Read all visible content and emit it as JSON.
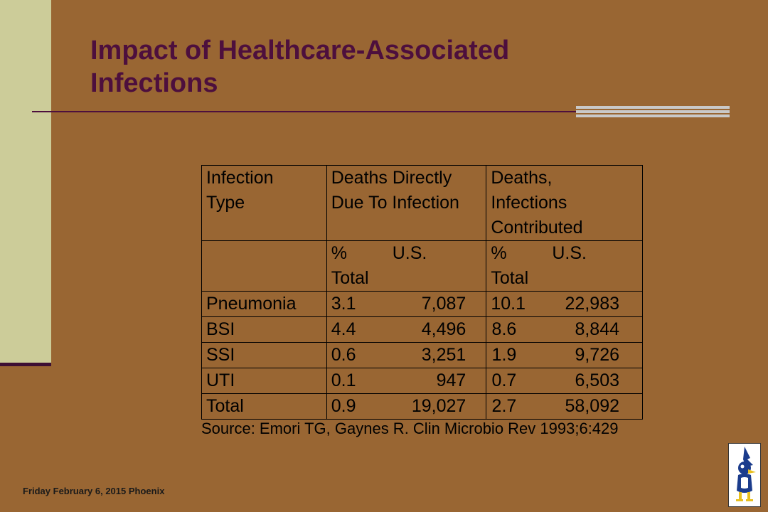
{
  "slide": {
    "title_line1": "Impact of Healthcare-Associated",
    "title_line2": "Infections",
    "footer": "Friday February 6, 2015 Phoenix",
    "source": "Source:  Emori TG, Gaynes R.  Clin Microbio Rev 1993;6:429",
    "colors": {
      "background": "#996633",
      "sidebar": "#cccc99",
      "title": "#4d0f3d"
    },
    "logo_icon": "bird-mascot-icon"
  },
  "table": {
    "header": {
      "col1": [
        "Infection",
        "Type"
      ],
      "col2": [
        "Deaths Directly",
        "Due To Infection"
      ],
      "col3": [
        "Deaths,",
        "Infections",
        "Contributed"
      ]
    },
    "subheader": {
      "pct": "%",
      "us": "U.S.",
      "total": "Total"
    },
    "rows": [
      {
        "type": "Pneumonia",
        "direct_pct": "3.1",
        "direct_us": "7,087",
        "contrib_pct": "10.1",
        "contrib_us": "22,983"
      },
      {
        "type": "BSI",
        "direct_pct": "4.4",
        "direct_us": "4,496",
        "contrib_pct": "8.6",
        "contrib_us": "8,844"
      },
      {
        "type": "SSI",
        "direct_pct": "0.6",
        "direct_us": "3,251",
        "contrib_pct": "1.9",
        "contrib_us": "9,726"
      },
      {
        "type": "UTI",
        "direct_pct": "0.1",
        "direct_us": "947",
        "contrib_pct": "0.7",
        "contrib_us": "6,503"
      },
      {
        "type": "Total",
        "direct_pct": "0.9",
        "direct_us": "19,027",
        "contrib_pct": "2.7",
        "contrib_us": "58,092"
      }
    ]
  }
}
